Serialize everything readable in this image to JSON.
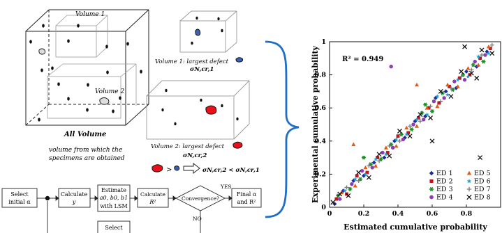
{
  "left": {
    "volume1_label": "Volume 1",
    "volume2_label": "Volume 2",
    "all_volume_title": "All Volume",
    "all_volume_caption": [
      "volume from which the",
      "specimens are obtained"
    ],
    "v1_caption": "Volume 1: largest defect",
    "v1_sigma": "σN,cr,1",
    "v2_caption": "Volume 2: largest defect",
    "v2_sigma": "σN,cr,2",
    "compare_gt": ">",
    "compare_result": "σN,cr,2 < σN,cr,1"
  },
  "flowchart": {
    "select_initial": [
      "Select",
      "initial α"
    ],
    "calculate_y": [
      "Calculate",
      "y"
    ],
    "estimate": [
      "Estimate",
      "a0, b0, b1",
      "with LSM"
    ],
    "calculate_r2": [
      "Calculate",
      "R²"
    ],
    "convergence": "Convergence?",
    "yes": "YES",
    "no": "NO",
    "final": [
      "Final α",
      "and R²"
    ],
    "select_bottom": "Select"
  },
  "colors": {
    "defect_red": "#e8101a",
    "defect_blue": "#3a63b8",
    "brace": "#1f6fc8"
  },
  "chart_data": {
    "type": "scatter",
    "xlabel": "Estimated cumulative probability",
    "ylabel": "Experimental cumulative probability",
    "xlim": [
      0,
      1
    ],
    "ylim": [
      0,
      1
    ],
    "xticks": [
      "0",
      "0.2",
      "0.4",
      "0.6",
      "0.8"
    ],
    "yticks": [
      "0",
      "0.2",
      "0.4",
      "0.6",
      "0.8",
      "1"
    ],
    "annotation": "R² = 0.949",
    "legend_position": "bottom-right",
    "series": [
      {
        "name": "ED 1",
        "marker": "diamond",
        "color": "#1a2a9c",
        "points": [
          [
            0.03,
            0.02
          ],
          [
            0.08,
            0.1
          ],
          [
            0.14,
            0.16
          ],
          [
            0.2,
            0.19
          ],
          [
            0.26,
            0.27
          ],
          [
            0.32,
            0.3
          ],
          [
            0.38,
            0.4
          ],
          [
            0.44,
            0.42
          ],
          [
            0.5,
            0.52
          ],
          [
            0.56,
            0.55
          ],
          [
            0.62,
            0.66
          ],
          [
            0.68,
            0.7
          ],
          [
            0.74,
            0.72
          ],
          [
            0.8,
            0.82
          ],
          [
            0.86,
            0.85
          ],
          [
            0.92,
            0.94
          ]
        ]
      },
      {
        "name": "ED 2",
        "marker": "square",
        "color": "#c0141c",
        "points": [
          [
            0.04,
            0.05
          ],
          [
            0.1,
            0.08
          ],
          [
            0.16,
            0.19
          ],
          [
            0.22,
            0.21
          ],
          [
            0.28,
            0.3
          ],
          [
            0.34,
            0.33
          ],
          [
            0.4,
            0.43
          ],
          [
            0.46,
            0.45
          ],
          [
            0.52,
            0.54
          ],
          [
            0.58,
            0.6
          ],
          [
            0.64,
            0.63
          ],
          [
            0.7,
            0.73
          ],
          [
            0.76,
            0.78
          ],
          [
            0.82,
            0.8
          ],
          [
            0.88,
            0.9
          ],
          [
            0.94,
            0.96
          ]
        ]
      },
      {
        "name": "ED 3",
        "marker": "star6",
        "color": "#1f8f2a",
        "points": [
          [
            0.05,
            0.07
          ],
          [
            0.12,
            0.11
          ],
          [
            0.18,
            0.17
          ],
          [
            0.24,
            0.26
          ],
          [
            0.3,
            0.29
          ],
          [
            0.36,
            0.38
          ],
          [
            0.42,
            0.44
          ],
          [
            0.48,
            0.47
          ],
          [
            0.54,
            0.57
          ],
          [
            0.6,
            0.58
          ],
          [
            0.66,
            0.69
          ],
          [
            0.72,
            0.71
          ],
          [
            0.78,
            0.8
          ],
          [
            0.84,
            0.86
          ],
          [
            0.9,
            0.88
          ],
          [
            0.2,
            0.3
          ],
          [
            0.56,
            0.62
          ]
        ]
      },
      {
        "name": "ED 4",
        "marker": "circle",
        "color": "#8a3fb0",
        "points": [
          [
            0.06,
            0.05
          ],
          [
            0.13,
            0.14
          ],
          [
            0.19,
            0.22
          ],
          [
            0.25,
            0.24
          ],
          [
            0.31,
            0.33
          ],
          [
            0.37,
            0.36
          ],
          [
            0.43,
            0.41
          ],
          [
            0.49,
            0.5
          ],
          [
            0.55,
            0.53
          ],
          [
            0.61,
            0.64
          ],
          [
            0.67,
            0.66
          ],
          [
            0.73,
            0.76
          ],
          [
            0.79,
            0.77
          ],
          [
            0.85,
            0.88
          ],
          [
            0.91,
            0.92
          ],
          [
            0.36,
            0.85
          ]
        ]
      },
      {
        "name": "ED 5",
        "marker": "triangle",
        "color": "#e05a14",
        "points": [
          [
            0.07,
            0.09
          ],
          [
            0.15,
            0.13
          ],
          [
            0.21,
            0.24
          ],
          [
            0.27,
            0.25
          ],
          [
            0.33,
            0.36
          ],
          [
            0.39,
            0.37
          ],
          [
            0.45,
            0.48
          ],
          [
            0.51,
            0.49
          ],
          [
            0.57,
            0.6
          ],
          [
            0.63,
            0.61
          ],
          [
            0.69,
            0.74
          ],
          [
            0.75,
            0.73
          ],
          [
            0.81,
            0.84
          ],
          [
            0.87,
            0.86
          ],
          [
            0.93,
            0.97
          ],
          [
            0.14,
            0.38
          ],
          [
            0.51,
            0.74
          ]
        ]
      },
      {
        "name": "ED 6",
        "marker": "star5",
        "color": "#1a9fcf",
        "points": [
          [
            0.09,
            0.1
          ],
          [
            0.15,
            0.17
          ],
          [
            0.21,
            0.2
          ],
          [
            0.27,
            0.29
          ],
          [
            0.33,
            0.32
          ],
          [
            0.39,
            0.41
          ],
          [
            0.45,
            0.44
          ],
          [
            0.51,
            0.53
          ],
          [
            0.57,
            0.56
          ],
          [
            0.63,
            0.67
          ],
          [
            0.69,
            0.68
          ],
          [
            0.75,
            0.77
          ],
          [
            0.81,
            0.79
          ],
          [
            0.87,
            0.91
          ],
          [
            0.93,
            0.93
          ]
        ]
      },
      {
        "name": "ED 7",
        "marker": "plus",
        "color": "#7a7a7a",
        "points": [
          [
            0.1,
            0.12
          ],
          [
            0.17,
            0.16
          ],
          [
            0.23,
            0.25
          ],
          [
            0.29,
            0.28
          ],
          [
            0.35,
            0.37
          ],
          [
            0.41,
            0.4
          ],
          [
            0.47,
            0.49
          ],
          [
            0.53,
            0.52
          ],
          [
            0.59,
            0.61
          ],
          [
            0.65,
            0.64
          ],
          [
            0.71,
            0.72
          ],
          [
            0.77,
            0.79
          ],
          [
            0.83,
            0.83
          ],
          [
            0.89,
            0.92
          ],
          [
            0.95,
            0.98
          ]
        ]
      },
      {
        "name": "ED 8",
        "marker": "cross",
        "color": "#111111",
        "points": [
          [
            0.02,
            0.03
          ],
          [
            0.06,
            0.08
          ],
          [
            0.11,
            0.07
          ],
          [
            0.17,
            0.21
          ],
          [
            0.23,
            0.18
          ],
          [
            0.29,
            0.32
          ],
          [
            0.35,
            0.31
          ],
          [
            0.41,
            0.46
          ],
          [
            0.47,
            0.43
          ],
          [
            0.53,
            0.56
          ],
          [
            0.59,
            0.54
          ],
          [
            0.65,
            0.7
          ],
          [
            0.71,
            0.67
          ],
          [
            0.77,
            0.82
          ],
          [
            0.83,
            0.81
          ],
          [
            0.89,
            0.95
          ],
          [
            0.95,
            0.93
          ],
          [
            0.79,
            0.97
          ],
          [
            0.86,
            0.78
          ],
          [
            0.88,
            0.3
          ],
          [
            0.6,
            0.4
          ]
        ]
      }
    ]
  }
}
